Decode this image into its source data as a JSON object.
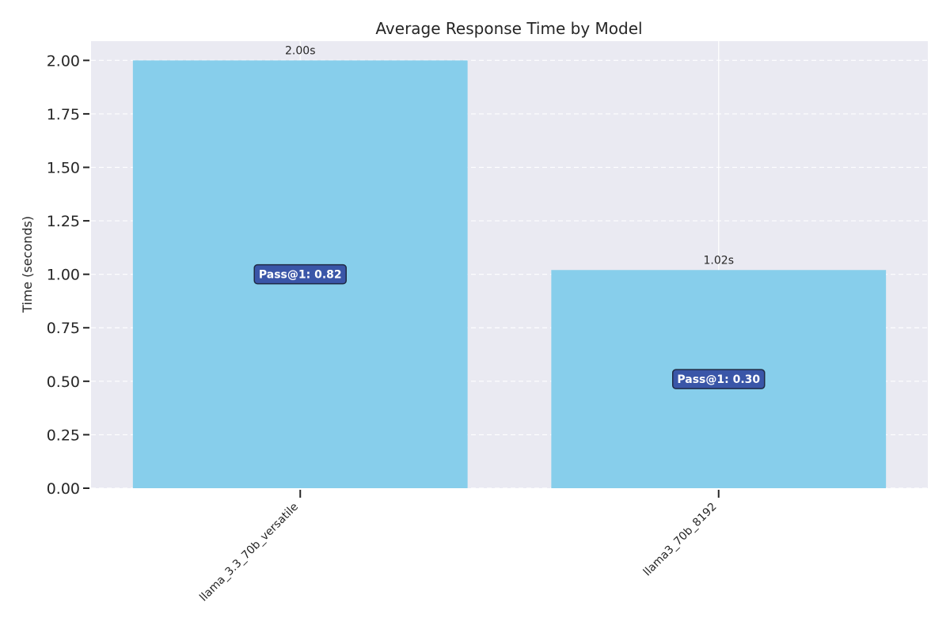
{
  "chart_data": {
    "type": "bar",
    "title": "Average Response Time by Model",
    "xlabel": "",
    "ylabel": "Time (seconds)",
    "categories": [
      "llama_3.3_70b_versatile",
      "llama3_70b_8192"
    ],
    "values": [
      2.0,
      1.02
    ],
    "value_labels": [
      "2.00s",
      "1.02s"
    ],
    "annotations": [
      "Pass@1: 0.82",
      "Pass@1: 0.30"
    ],
    "ylim": [
      0,
      2.09
    ],
    "yticks": [
      "0.00",
      "0.25",
      "0.50",
      "0.75",
      "1.00",
      "1.25",
      "1.50",
      "1.75",
      "2.00"
    ],
    "grid": true,
    "colors": {
      "bar": "#87ceeb",
      "plot_background": "#eaeaf2",
      "annotation_box": "#3a56a8",
      "annotation_border": "#1f2a44"
    }
  }
}
